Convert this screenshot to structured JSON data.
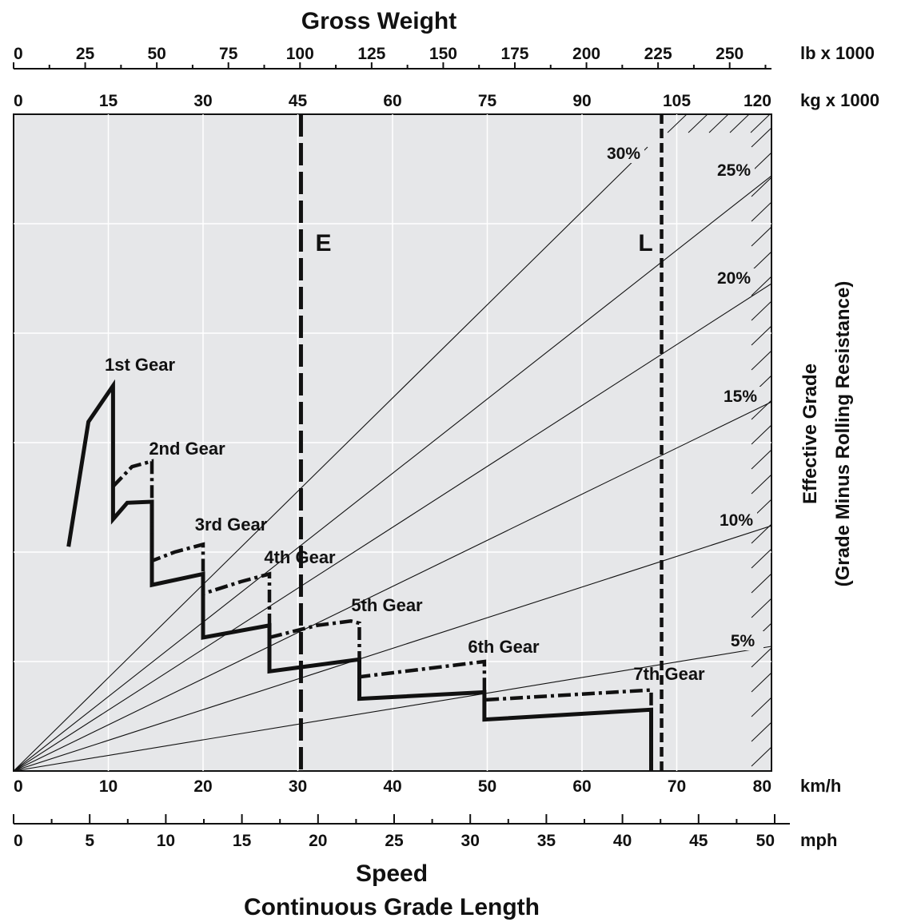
{
  "chart_data": {
    "type": "line",
    "title": "Gross Weight",
    "top_axes": [
      {
        "name": "lb",
        "unit_label": "lb x 1000",
        "ticks": [
          "0",
          "25",
          "50",
          "75",
          "100",
          "125",
          "150",
          "175",
          "200",
          "225",
          "250"
        ],
        "tick_values": [
          0,
          25,
          50,
          75,
          100,
          125,
          150,
          175,
          200,
          225,
          250
        ],
        "minor_step": 12.5,
        "range": [
          0,
          264.6
        ]
      },
      {
        "name": "kg",
        "unit_label": "kg x 1000",
        "ticks": [
          "0",
          "15",
          "30",
          "45",
          "60",
          "75",
          "90",
          "105",
          "120"
        ],
        "tick_values": [
          0,
          15,
          30,
          45,
          60,
          75,
          90,
          105,
          120
        ],
        "range": [
          0,
          120
        ]
      }
    ],
    "bottom_axes": [
      {
        "name": "kmh",
        "unit_label": "km/h",
        "ticks": [
          "0",
          "10",
          "20",
          "30",
          "40",
          "50",
          "60",
          "70",
          "80"
        ],
        "tick_values": [
          0,
          10,
          20,
          30,
          40,
          50,
          60,
          70,
          80
        ],
        "range": [
          0,
          80
        ]
      },
      {
        "name": "mph",
        "unit_label": "mph",
        "ticks": [
          "0",
          "5",
          "10",
          "15",
          "20",
          "25",
          "30",
          "35",
          "40",
          "45",
          "50"
        ],
        "tick_values": [
          0,
          5,
          10,
          15,
          20,
          25,
          30,
          35,
          40,
          45,
          50
        ],
        "range": [
          0,
          50
        ]
      }
    ],
    "xlabel": "Speed",
    "xlabel2": "Continuous Grade Length",
    "ylabel": "Effective Grade",
    "ylabel2": "(Grade Minus Rolling Resistance)",
    "grid": true,
    "grade_lines": [
      {
        "label": "30%",
        "grade": 30
      },
      {
        "label": "25%",
        "grade": 25
      },
      {
        "label": "20%",
        "grade": 20
      },
      {
        "label": "15%",
        "grade": 15
      },
      {
        "label": "10%",
        "grade": 10
      },
      {
        "label": "5%",
        "grade": 5
      }
    ],
    "reference_lines": [
      {
        "label": "E",
        "weight_kg_x1000": 45.5
      },
      {
        "label": "L",
        "weight_kg_x1000": 102.6
      }
    ],
    "gear_labels": [
      "1st Gear",
      "2nd Gear",
      "3rd Gear",
      "4th Gear",
      "5th Gear",
      "6th Gear",
      "7th Gear"
    ],
    "series": [
      {
        "style": "solid",
        "points": [
          [
            5.8,
            2.05
          ],
          [
            7.9,
            3.19
          ],
          [
            10.5,
            3.52
          ],
          [
            10.5,
            2.3
          ],
          [
            12.0,
            2.45
          ],
          [
            14.6,
            2.46
          ],
          [
            14.6,
            1.7
          ],
          [
            20.0,
            1.8
          ],
          [
            20.0,
            1.22
          ],
          [
            27.0,
            1.33
          ],
          [
            27.0,
            0.91
          ],
          [
            36.5,
            1.02
          ],
          [
            36.5,
            0.66
          ],
          [
            49.7,
            0.72
          ],
          [
            49.7,
            0.47
          ],
          [
            67.3,
            0.56
          ],
          [
            67.3,
            0.0
          ]
        ]
      },
      {
        "style": "dash-dot",
        "points": [
          [
            10.5,
            2.6
          ],
          [
            12.5,
            2.78
          ],
          [
            14.6,
            2.83
          ],
          [
            14.6,
            1.92
          ],
          [
            17.0,
            2.0
          ],
          [
            20.0,
            2.07
          ],
          [
            20.0,
            1.62
          ],
          [
            24.0,
            1.73
          ],
          [
            27.0,
            1.8
          ],
          [
            27.0,
            1.22
          ],
          [
            32.0,
            1.33
          ],
          [
            35.6,
            1.37
          ],
          [
            36.5,
            1.35
          ],
          [
            36.5,
            0.86
          ],
          [
            49.7,
            1.0
          ],
          [
            49.7,
            0.65
          ],
          [
            67.3,
            0.74
          ],
          [
            67.3,
            0.0
          ]
        ]
      }
    ]
  }
}
